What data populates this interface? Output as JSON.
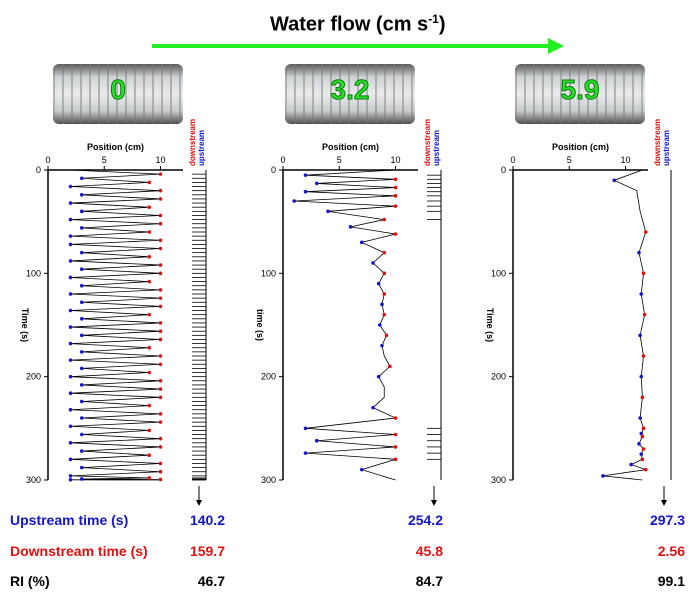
{
  "header": {
    "title_text": "Water flow (cm s",
    "title_exp": "-1",
    "title_close": ")",
    "arrow_color": "#22ee22"
  },
  "photos": [
    "0",
    "3.2",
    "5.9"
  ],
  "labels": {
    "position": "Position (cm)",
    "time": "Time (s)",
    "downstream": "downstream",
    "upstream": "upstream"
  },
  "rows": {
    "upstream": "Upstream time (s)",
    "downstream": "Downstream time (s)",
    "ri": "RI (%)"
  },
  "colors": {
    "upstream": "#1515c8",
    "downstream": "#e01010",
    "trace": "#000000"
  },
  "results": [
    {
      "upstream": "140.2",
      "downstream": "159.7",
      "ri": "46.7"
    },
    {
      "upstream": "254.2",
      "downstream": "45.8",
      "ri": "84.7"
    },
    {
      "upstream": "297.3",
      "downstream": "2.56",
      "ri": "99.1"
    }
  ],
  "chart_data": [
    {
      "type": "line",
      "title": "0",
      "xlabel": "Position (cm)",
      "ylabel": "Time (s)",
      "xlim": [
        0,
        12
      ],
      "ylim": [
        0,
        300
      ],
      "y_inverted": true,
      "xticks": [
        0,
        5,
        10
      ],
      "yticks": [
        0,
        100,
        200,
        300
      ],
      "pattern": "rapid oscillation between ~2 cm and ~10 cm throughout the 300 s record",
      "x": [
        2,
        10,
        3,
        9,
        2,
        10,
        3,
        10,
        2,
        9,
        3,
        10,
        2,
        10,
        3,
        9,
        2,
        10,
        2,
        10,
        3,
        9,
        2,
        10,
        3,
        10,
        2,
        9,
        3,
        10,
        2,
        10,
        3,
        10,
        2,
        9,
        3,
        10,
        2,
        10,
        3,
        10,
        2,
        9,
        3,
        10,
        2,
        10,
        3,
        9,
        2,
        10,
        3,
        10,
        2,
        10,
        3,
        9,
        2,
        10,
        3,
        10,
        2,
        9,
        3,
        10,
        2,
        10,
        3,
        9,
        2,
        10,
        3,
        10,
        2,
        9,
        3,
        10,
        2,
        10
      ],
      "y": [
        0,
        4,
        8,
        12,
        16,
        20,
        24,
        28,
        32,
        36,
        40,
        44,
        48,
        52,
        56,
        60,
        64,
        68,
        72,
        76,
        80,
        84,
        88,
        92,
        96,
        100,
        104,
        108,
        112,
        116,
        120,
        124,
        128,
        132,
        136,
        140,
        144,
        148,
        152,
        156,
        160,
        164,
        168,
        172,
        176,
        180,
        184,
        188,
        192,
        196,
        200,
        204,
        208,
        212,
        216,
        220,
        224,
        228,
        232,
        236,
        240,
        244,
        248,
        252,
        256,
        260,
        264,
        268,
        272,
        276,
        280,
        284,
        288,
        292,
        296,
        298,
        299,
        299.5,
        299.8,
        300
      ]
    },
    {
      "type": "line",
      "title": "3.2",
      "xlabel": "Position (cm)",
      "ylabel": "time (s)",
      "xlim": [
        0,
        12
      ],
      "ylim": [
        0,
        300
      ],
      "y_inverted": true,
      "xticks": [
        0,
        5,
        10
      ],
      "yticks": [
        0,
        100,
        200,
        300
      ],
      "pattern": "oscillation in first 70 s, steady near 8-9 cm from ~70 to ~240 s, oscillation after 240 s",
      "x": [
        10,
        2,
        10,
        3,
        10,
        2,
        10,
        1,
        10,
        4,
        9,
        6,
        10,
        7,
        9,
        8,
        9,
        8.5,
        9,
        8.8,
        9,
        8.6,
        9.2,
        8.8,
        9,
        9.5,
        8.5,
        9,
        9,
        8,
        10,
        2,
        10,
        3,
        10,
        2,
        10,
        7,
        10
      ],
      "y": [
        0,
        5,
        9,
        13,
        17,
        21,
        25,
        30,
        35,
        40,
        48,
        55,
        62,
        70,
        80,
        90,
        100,
        110,
        120,
        130,
        140,
        150,
        160,
        170,
        180,
        190,
        200,
        210,
        220,
        230,
        240,
        250,
        256,
        262,
        268,
        274,
        280,
        290,
        300
      ]
    },
    {
      "type": "line",
      "title": "5.9",
      "xlabel": "Position (cm)",
      "ylabel": "Time (s)",
      "xlim": [
        0,
        12
      ],
      "ylim": [
        0,
        300
      ],
      "y_inverted": true,
      "xticks": [
        0,
        5,
        10
      ],
      "yticks": [
        0,
        100,
        200,
        300
      ],
      "pattern": "stays near 11 cm (upstream) for almost the whole record, brief excursions near 10 s and 285-300 s",
      "x": [
        11.5,
        9,
        11,
        11.3,
        11.8,
        11.2,
        11.6,
        11.4,
        11.7,
        11.3,
        11.6,
        11.4,
        11.5,
        11.3,
        11.6,
        11.4,
        11.5,
        11.2,
        11.6,
        11.4,
        11.5,
        10.5,
        11.8,
        8,
        11.5
      ],
      "y": [
        0,
        10,
        20,
        40,
        60,
        80,
        100,
        120,
        140,
        160,
        180,
        200,
        220,
        240,
        250,
        255,
        258,
        265,
        270,
        275,
        280,
        285,
        290,
        296,
        300
      ]
    }
  ]
}
